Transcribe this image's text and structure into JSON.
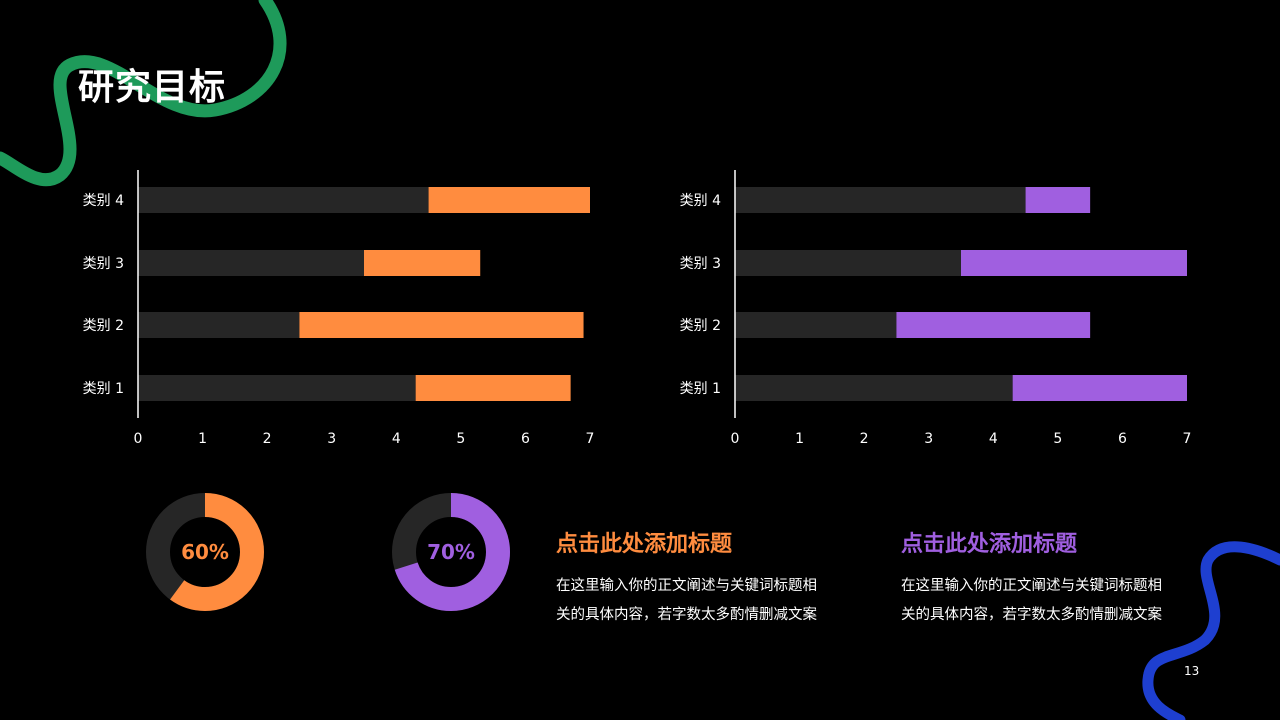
{
  "slide": {
    "title": "研究目标",
    "page_number": "13"
  },
  "colors": {
    "background": "#000000",
    "track": "#262626",
    "orange": "#FF8C3F",
    "purple": "#A05FE0",
    "green_stroke": "#1E9A5A",
    "blue_stroke": "#1E3FD0"
  },
  "chart_data": [
    {
      "type": "bar",
      "orientation": "horizontal",
      "stacked": true,
      "categories": [
        "类别 1",
        "类别 2",
        "类别 3",
        "类别 4"
      ],
      "series": [
        {
          "values": [
            4.3,
            2.5,
            3.5,
            4.5
          ],
          "color": "#262626"
        },
        {
          "values": [
            2.4,
            4.4,
            1.8,
            2.5
          ],
          "color": "#FF8C3F"
        }
      ],
      "xlim": [
        0,
        7
      ],
      "xticks": [
        "0",
        "1",
        "2",
        "3",
        "4",
        "5",
        "6",
        "7"
      ],
      "grid": false,
      "legend": "none"
    },
    {
      "type": "bar",
      "orientation": "horizontal",
      "stacked": true,
      "categories": [
        "类别 1",
        "类别 2",
        "类别 3",
        "类别 4"
      ],
      "series": [
        {
          "values": [
            4.3,
            2.5,
            3.5,
            4.5
          ],
          "color": "#262626"
        },
        {
          "values": [
            2.7,
            3.0,
            3.5,
            1.0
          ],
          "color": "#A05FE0"
        }
      ],
      "xlim": [
        0,
        7
      ],
      "xticks": [
        "0",
        "1",
        "2",
        "3",
        "4",
        "5",
        "6",
        "7"
      ],
      "grid": false,
      "legend": "none"
    },
    {
      "type": "pie",
      "variant": "donut",
      "value": 60,
      "center_label": "60%",
      "color": "#FF8C3F",
      "track_color": "#262626"
    },
    {
      "type": "pie",
      "variant": "donut",
      "value": 70,
      "center_label": "70%",
      "color": "#A05FE0",
      "track_color": "#262626"
    }
  ],
  "text_blocks": [
    {
      "title": "点击此处添加标题",
      "body_line1": "在这里输入你的正文阐述与关键词标题相",
      "body_line2": "关的具体内容，若字数太多酌情删减文案",
      "color": "#FF8C3F"
    },
    {
      "title": "点击此处添加标题",
      "body_line1": "在这里输入你的正文阐述与关键词标题相",
      "body_line2": "关的具体内容，若字数太多酌情删减文案",
      "color": "#A05FE0"
    }
  ]
}
